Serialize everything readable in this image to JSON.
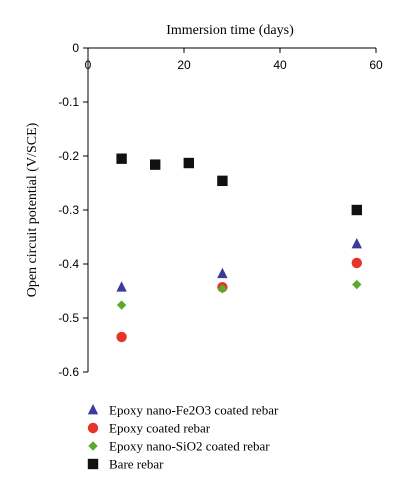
{
  "chart_data": {
    "type": "scatter",
    "title": "",
    "xlabel": "Immersion time (days)",
    "ylabel": "Open circuit potential (V/SCE)",
    "xlim": [
      0,
      60
    ],
    "ylim": [
      -0.6,
      0
    ],
    "x_ticks": [
      "0",
      "20",
      "40",
      "60"
    ],
    "y_ticks": [
      "0",
      "-0.1",
      "-0.2",
      "-0.3",
      "-0.4",
      "-0.5",
      "-0.6"
    ],
    "x_axis_position": "top",
    "grid": false,
    "legend_position": "bottom-left",
    "series": [
      {
        "name": "Epoxy nano-Fe2O3 coated rebar",
        "marker": "triangle",
        "color": "#3b3b9a",
        "points": [
          [
            7,
            -0.443
          ],
          [
            28,
            -0.418
          ],
          [
            56,
            -0.363
          ]
        ]
      },
      {
        "name": "Epoxy coated rebar",
        "marker": "circle",
        "color": "#e8332a",
        "points": [
          [
            7,
            -0.535
          ],
          [
            28,
            -0.443
          ],
          [
            56,
            -0.398
          ]
        ]
      },
      {
        "name": "Epoxy nano-SiO2 coated rebar",
        "marker": "diamond",
        "color": "#5aaa2e",
        "points": [
          [
            7,
            -0.476
          ],
          [
            28,
            -0.446
          ],
          [
            56,
            -0.438
          ]
        ]
      },
      {
        "name": "Bare rebar",
        "marker": "square",
        "color": "#111111",
        "points": [
          [
            7,
            -0.205
          ],
          [
            14,
            -0.216
          ],
          [
            21,
            -0.213
          ],
          [
            28,
            -0.246
          ],
          [
            56,
            -0.3
          ]
        ]
      }
    ]
  }
}
